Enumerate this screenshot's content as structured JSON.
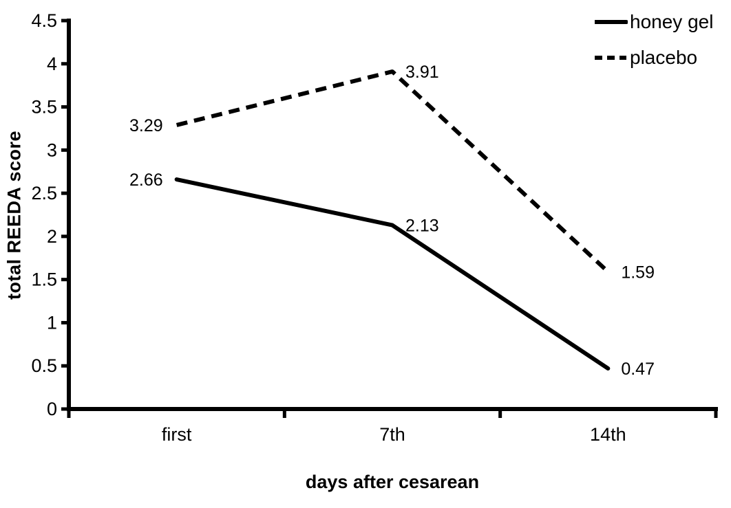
{
  "chart_data": {
    "type": "line",
    "categories": [
      "first",
      "7th",
      "14th"
    ],
    "series": [
      {
        "name": "honey gel",
        "values": [
          2.66,
          2.13,
          0.47
        ],
        "line_style": "solid",
        "labels": [
          "2.66",
          "2.13",
          "0.47"
        ]
      },
      {
        "name": "placebo",
        "values": [
          3.29,
          3.91,
          1.59
        ],
        "line_style": "dashed",
        "labels": [
          "3.29",
          "3.91",
          "1.59"
        ]
      }
    ],
    "title": "",
    "xlabel": "days after cesarean",
    "ylabel": "total REEDA score",
    "ylim": [
      0,
      4.5
    ],
    "y_ticks": [
      "0",
      "0.5",
      "1",
      "1.5",
      "2",
      "2.5",
      "3",
      "3.5",
      "4",
      "4.5"
    ],
    "grid": false,
    "data_labels": true,
    "label_side_by_point": [
      "left",
      "right",
      "right"
    ],
    "legend_position": "top-right",
    "colors": {
      "line": "#000000",
      "text": "#000000",
      "background": "#ffffff"
    }
  }
}
